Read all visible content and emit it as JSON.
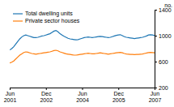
{
  "chart_data": {
    "type": "line",
    "ylabel": "no.",
    "categories": [
      "Jun\n2001",
      null,
      null,
      null,
      null,
      null,
      null,
      null,
      null,
      null,
      null,
      null,
      null,
      null,
      null,
      null,
      null,
      null,
      "Dec\n2002",
      null,
      null,
      null,
      null,
      null,
      null,
      null,
      null,
      null,
      null,
      null,
      null,
      null,
      null,
      null,
      null,
      null,
      "Jun\n2004",
      null,
      null,
      null,
      null,
      null,
      null,
      null,
      null,
      null,
      null,
      null,
      null,
      null,
      null,
      null,
      null,
      null,
      "Dec\n2005",
      null,
      null,
      null,
      null,
      null,
      null,
      null,
      null,
      null,
      null,
      null,
      null,
      null,
      null,
      null,
      null,
      null,
      "Jun\n2007"
    ],
    "series": [
      {
        "name": "Total dwelling units",
        "values": [
          780,
          800,
          830,
          870,
          910,
          950,
          980,
          1000,
          1010,
          1000,
          990,
          980,
          970,
          970,
          975,
          985,
          995,
          1000,
          1010,
          1020,
          1030,
          1050,
          1070,
          1080,
          1060,
          1030,
          1010,
          990,
          975,
          960,
          950,
          945,
          940,
          935,
          940,
          950,
          960,
          970,
          975,
          980,
          975,
          970,
          975,
          980,
          985,
          990,
          985,
          980,
          975,
          970,
          975,
          985,
          995,
          1005,
          1010,
          1015,
          1000,
          985,
          975,
          970,
          965,
          960,
          955,
          960,
          965,
          970,
          975,
          985,
          995,
          1010,
          1015,
          1010,
          1000
        ]
      },
      {
        "name": "Private sector houses",
        "values": [
          580,
          590,
          610,
          640,
          670,
          700,
          720,
          740,
          750,
          745,
          735,
          725,
          720,
          715,
          720,
          725,
          730,
          735,
          740,
          745,
          750,
          760,
          770,
          775,
          765,
          750,
          740,
          730,
          720,
          715,
          710,
          705,
          700,
          700,
          705,
          710,
          715,
          720,
          725,
          730,
          725,
          720,
          720,
          725,
          730,
          735,
          730,
          725,
          720,
          715,
          720,
          725,
          730,
          735,
          740,
          742,
          735,
          725,
          718,
          715,
          712,
          710,
          708,
          710,
          712,
          715,
          718,
          725,
          732,
          740,
          742,
          740,
          735
        ]
      }
    ],
    "ylim": [
      200,
      1400
    ],
    "yticks": [
      200,
      600,
      1000,
      1400
    ],
    "grid": false,
    "legend": "top-left"
  }
}
